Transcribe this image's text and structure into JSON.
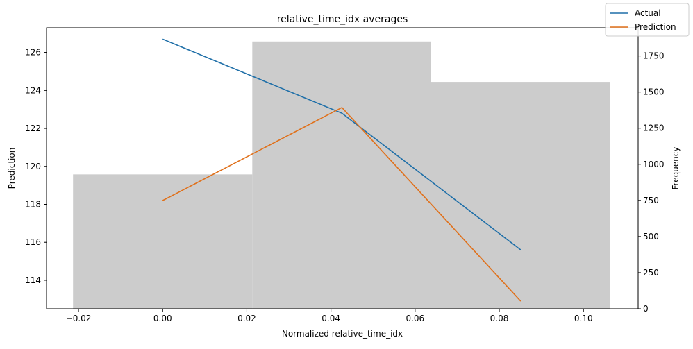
{
  "chart_data": {
    "type": "line",
    "title": "relative_time_idx averages",
    "xlabel": "Normalized relative_time_idx",
    "ylabel": "Prediction",
    "y2label": "Frequency",
    "xlim": [
      -0.0276,
      0.113
    ],
    "ylim": [
      112.5,
      127.3
    ],
    "y2lim": [
      0,
      1945
    ],
    "xticks": [
      -0.02,
      0.0,
      0.02,
      0.04,
      0.06,
      0.08,
      0.1
    ],
    "xtick_labels": [
      "−0.02",
      "0.00",
      "0.02",
      "0.04",
      "0.06",
      "0.08",
      "0.10"
    ],
    "yticks": [
      114,
      116,
      118,
      120,
      122,
      124,
      126
    ],
    "ytick_labels": [
      "114",
      "116",
      "118",
      "120",
      "122",
      "124",
      "126"
    ],
    "y2ticks": [
      0,
      250,
      500,
      750,
      1000,
      1250,
      1500,
      1750
    ],
    "y2tick_labels": [
      "0",
      "250",
      "500",
      "750",
      "1000",
      "1250",
      "1500",
      "1750"
    ],
    "histogram": {
      "axis": "y2",
      "color": "#cccccc",
      "bins": [
        {
          "x0": -0.0213,
          "x1": 0.0213,
          "count": 930
        },
        {
          "x0": 0.0213,
          "x1": 0.0638,
          "count": 1850
        },
        {
          "x0": 0.0638,
          "x1": 0.1064,
          "count": 1570
        }
      ]
    },
    "series": [
      {
        "name": "Actual",
        "color": "#1f6fa8",
        "x": [
          0.0,
          0.0426,
          0.0851
        ],
        "y": [
          126.7,
          122.8,
          115.6
        ]
      },
      {
        "name": "Prediction",
        "color": "#e0701a",
        "x": [
          0.0,
          0.0426,
          0.0851
        ],
        "y": [
          118.2,
          123.1,
          112.9
        ]
      }
    ],
    "legend": {
      "position": "top-right",
      "entries": [
        "Actual",
        "Prediction"
      ]
    },
    "grid": false
  }
}
